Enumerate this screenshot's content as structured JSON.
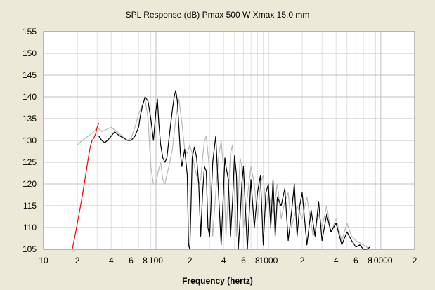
{
  "window": {
    "background": "#ece9d8"
  },
  "chart_data": {
    "type": "line",
    "title": "SPL Response (dB)   Pmax 500 W   Xmax 15.0 mm",
    "xlabel": "Frequency (hertz)",
    "ylabel": "",
    "x_scale": "log",
    "xlim": [
      10,
      20000
    ],
    "ylim": [
      105,
      155
    ],
    "grid": true,
    "x_tick_labels": [
      {
        "value": 10,
        "label": "10"
      },
      {
        "value": 20,
        "label": "2"
      },
      {
        "value": 40,
        "label": "4"
      },
      {
        "value": 60,
        "label": "6"
      },
      {
        "value": 80,
        "label": "8"
      },
      {
        "value": 100,
        "label": "100"
      },
      {
        "value": 200,
        "label": "2"
      },
      {
        "value": 400,
        "label": "4"
      },
      {
        "value": 600,
        "label": "6"
      },
      {
        "value": 800,
        "label": "8"
      },
      {
        "value": 1000,
        "label": "1000"
      },
      {
        "value": 2000,
        "label": "2"
      },
      {
        "value": 4000,
        "label": "4"
      },
      {
        "value": 6000,
        "label": "6"
      },
      {
        "value": 8000,
        "label": "8"
      },
      {
        "value": 10000,
        "label": "10000"
      },
      {
        "value": 20000,
        "label": "2"
      }
    ],
    "y_ticks": [
      105,
      110,
      115,
      120,
      125,
      130,
      135,
      140,
      145,
      150,
      155
    ],
    "colors": {
      "plot_bg": "#ffffff",
      "grid_major": "#c0c0c0",
      "grid_minor": "#e2e2e2",
      "frame": "#808080"
    },
    "series": [
      {
        "color": "#b8b8b8",
        "x": [
          20,
          22,
          25,
          28,
          30,
          33,
          36,
          40,
          45,
          50,
          55,
          60,
          65,
          70,
          75,
          80,
          85,
          90,
          95,
          100,
          105,
          110,
          115,
          120,
          130,
          140,
          150,
          160,
          170,
          180,
          190,
          200,
          210,
          220,
          230,
          240,
          250,
          260,
          270,
          280,
          300,
          320,
          340,
          360,
          380,
          400,
          420,
          440,
          460,
          480,
          500,
          520,
          540,
          560,
          580,
          600,
          650,
          700,
          750,
          800,
          850,
          900,
          950,
          1000,
          1100,
          1200,
          1300,
          1400,
          1500,
          1600,
          1800,
          2000,
          2200,
          2500,
          2800,
          3000,
          3300,
          3600,
          4000,
          4500,
          5000,
          5500,
          6000,
          7000,
          8000
        ],
        "y": [
          129,
          130,
          131,
          132,
          133,
          132,
          132.5,
          133,
          132,
          131,
          130,
          130.5,
          133,
          136,
          138,
          139.5,
          135,
          124,
          120,
          120,
          123,
          125,
          121,
          120,
          124,
          128,
          135,
          139.5,
          134,
          128,
          127,
          129,
          127,
          124,
          122,
          120,
          121,
          126,
          130,
          131,
          123,
          108,
          118,
          126,
          130,
          123,
          108,
          118,
          127,
          129,
          118,
          108,
          117,
          126,
          124,
          110,
          117,
          124,
          120,
          112,
          120,
          122,
          114,
          118,
          113,
          120,
          112,
          116,
          118,
          110,
          115,
          112,
          117,
          108,
          113,
          110,
          115,
          109,
          112,
          107,
          111,
          108,
          107,
          106,
          105
        ]
      },
      {
        "color": "#ff0000",
        "x": [
          18,
          19,
          20,
          21,
          22,
          23,
          24,
          25,
          26,
          27,
          28,
          29,
          30,
          31
        ],
        "y": [
          105,
          108,
          111,
          114,
          117,
          120,
          123,
          126,
          128.5,
          130,
          130.5,
          131.5,
          133,
          134
        ]
      },
      {
        "color": "#000000",
        "x": [
          31,
          33,
          35,
          37,
          40,
          43,
          45,
          48,
          52,
          56,
          60,
          65,
          70,
          73,
          76,
          80,
          85,
          90,
          95,
          100,
          103,
          106,
          110,
          115,
          120,
          125,
          130,
          140,
          145,
          150,
          155,
          160,
          165,
          170,
          180,
          190,
          195,
          200,
          205,
          210,
          220,
          230,
          240,
          250,
          260,
          270,
          280,
          290,
          300,
          320,
          340,
          360,
          380,
          400,
          410,
          420,
          440,
          460,
          480,
          500,
          520,
          540,
          560,
          580,
          600,
          650,
          700,
          750,
          800,
          850,
          900,
          950,
          1000,
          1050,
          1100,
          1150,
          1200,
          1300,
          1400,
          1500,
          1600,
          1700,
          1800,
          1900,
          2000,
          2200,
          2400,
          2600,
          2800,
          3000,
          3300,
          3600,
          4000,
          4500,
          5000,
          5500,
          6000,
          6500,
          7000,
          7500,
          8000
        ],
        "y": [
          131,
          130,
          129.5,
          130,
          131,
          132,
          131.5,
          131,
          130.5,
          130,
          130,
          131,
          133,
          136,
          138,
          140,
          139,
          135,
          130,
          137,
          139.5,
          134,
          129,
          126,
          125,
          126,
          130,
          137,
          140,
          141.5,
          139,
          133,
          127,
          124,
          128,
          122,
          106,
          105,
          115,
          126,
          128.5,
          126,
          120,
          108,
          118,
          124,
          123,
          110,
          108,
          125,
          131,
          118,
          106,
          119,
          126,
          124,
          121,
          108,
          116,
          126.5,
          122,
          105,
          112,
          120,
          124,
          105,
          121,
          110,
          118,
          122,
          106,
          118,
          120,
          110,
          121,
          108,
          117,
          115,
          119,
          107,
          113,
          120,
          108,
          115,
          118,
          106,
          114,
          108,
          116,
          107,
          113,
          109,
          111,
          106,
          109,
          107,
          105.5,
          106,
          105,
          105,
          105.5
        ]
      }
    ]
  }
}
